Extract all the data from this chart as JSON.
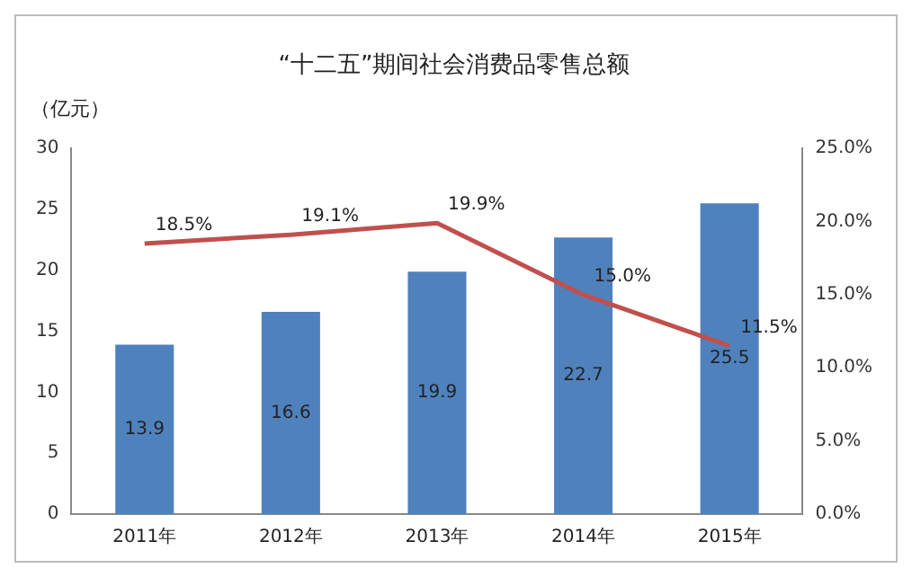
{
  "chart_data": {
    "type": "bar",
    "title": "“十二五”期间社会消费品零售总额",
    "ylabel": "（亿元）",
    "categories": [
      "2011年",
      "2012年",
      "2013年",
      "2014年",
      "2015年"
    ],
    "series": [
      {
        "color": "#4f81bd",
        "values": [
          13.9,
          16.6,
          19.9,
          22.7,
          25.5
        ],
        "value_labels": [
          "13.9",
          "16.6",
          "19.9",
          "22.7",
          "25.5"
        ]
      },
      {
        "type": "line",
        "axis": "y2",
        "color": "#c0504d",
        "marker": "none",
        "values": [
          18.5,
          19.1,
          19.9,
          15.0,
          11.5
        ],
        "value_labels": [
          "18.5%",
          "19.1%",
          "19.9%",
          "15.0%",
          "11.5%"
        ]
      }
    ],
    "ylim": [
      0,
      30
    ],
    "yticks": [
      0,
      5,
      10,
      15,
      20,
      25,
      30
    ],
    "y2lim": [
      0,
      25
    ],
    "y2ticks": [
      {
        "value": 0,
        "label": "0.0%"
      },
      {
        "value": 5,
        "label": "5.0%"
      },
      {
        "value": 10,
        "label": "10.0%"
      },
      {
        "value": 15,
        "label": "15.0%"
      },
      {
        "value": 20,
        "label": "20.0%"
      },
      {
        "value": 25,
        "label": "25.0%"
      }
    ],
    "grid": false,
    "legend": false
  }
}
